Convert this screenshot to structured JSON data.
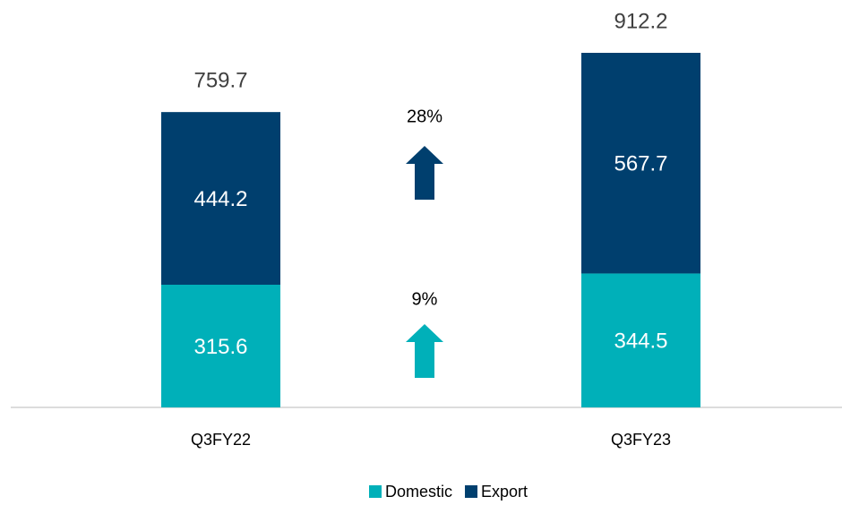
{
  "chart_data": {
    "type": "stacked-bar",
    "categories": [
      "Q3FY22",
      "Q3FY23"
    ],
    "series": [
      {
        "name": "Domestic",
        "color": "#00b0b9",
        "values": [
          315.6,
          344.5
        ]
      },
      {
        "name": "Export",
        "color": "#003f6e",
        "values": [
          444.2,
          567.7
        ]
      }
    ],
    "totals": [
      759.7,
      912.2
    ],
    "annotations": [
      {
        "text": "28%",
        "color": "#003f6e"
      },
      {
        "text": "9%",
        "color": "#00b0b9"
      }
    ],
    "legend": "bottom"
  }
}
